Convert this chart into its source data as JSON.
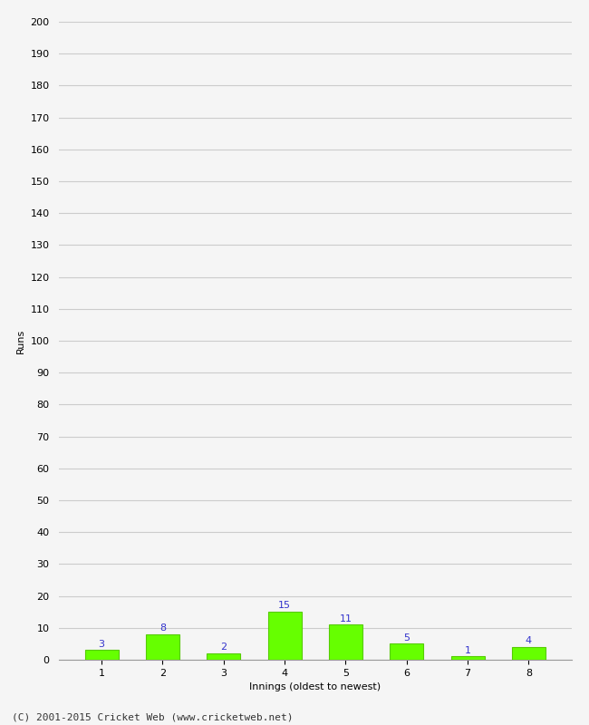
{
  "innings": [
    1,
    2,
    3,
    4,
    5,
    6,
    7,
    8
  ],
  "runs": [
    3,
    8,
    2,
    15,
    11,
    5,
    1,
    4
  ],
  "bar_color": "#66ff00",
  "bar_edge_color": "#55cc00",
  "label_color": "#3333cc",
  "xlabel": "Innings (oldest to newest)",
  "ylabel": "Runs",
  "ylim": [
    0,
    200
  ],
  "yticks": [
    0,
    10,
    20,
    30,
    40,
    50,
    60,
    70,
    80,
    90,
    100,
    110,
    120,
    130,
    140,
    150,
    160,
    170,
    180,
    190,
    200
  ],
  "grid_color": "#cccccc",
  "bg_color": "#f5f5f5",
  "footer": "(C) 2001-2015 Cricket Web (www.cricketweb.net)",
  "label_fontsize": 8,
  "axis_fontsize": 8,
  "tick_fontsize": 8,
  "footer_fontsize": 8
}
